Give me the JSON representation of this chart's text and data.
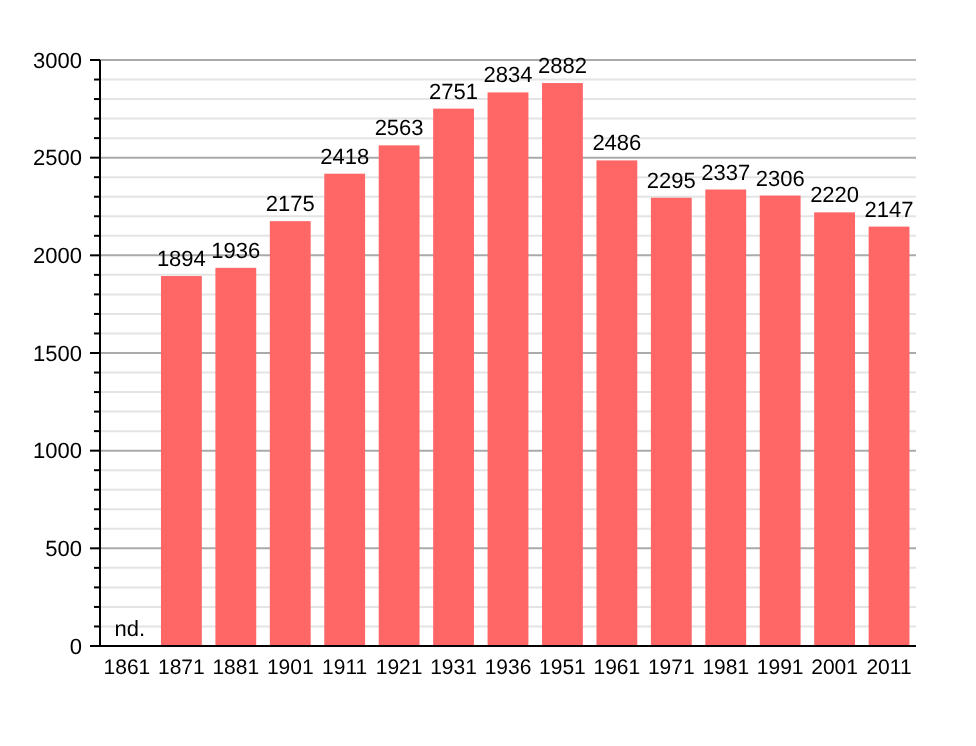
{
  "chart_data": {
    "type": "bar",
    "categories": [
      "1861",
      "1871",
      "1881",
      "1901",
      "1911",
      "1921",
      "1931",
      "1936",
      "1951",
      "1961",
      "1971",
      "1981",
      "1991",
      "2001",
      "2011"
    ],
    "values": [
      null,
      1894,
      1936,
      2175,
      2418,
      2563,
      2751,
      2834,
      2882,
      2486,
      2295,
      2337,
      2306,
      2220,
      2147
    ],
    "value_labels": [
      "nd.",
      "1894",
      "1936",
      "2175",
      "2418",
      "2563",
      "2751",
      "2834",
      "2882",
      "2486",
      "2295",
      "2337",
      "2306",
      "2220",
      "2147"
    ],
    "color": "#ff6666",
    "ylim": [
      0,
      3000
    ],
    "yticks": [
      0,
      {
        "value": 100,
        "label": null
      },
      {
        "value": 200,
        "label": null
      },
      {
        "value": 300,
        "label": null
      },
      {
        "value": 400,
        "label": null
      },
      500,
      {
        "value": 600,
        "label": null
      },
      {
        "value": 700,
        "label": null
      },
      {
        "value": 800,
        "label": null
      },
      {
        "value": 900,
        "label": null
      },
      1000,
      {
        "value": 1100,
        "label": null
      },
      {
        "value": 1200,
        "label": null
      },
      {
        "value": 1300,
        "label": null
      },
      {
        "value": 1400,
        "label": null
      },
      1500,
      {
        "value": 1600,
        "label": null
      },
      {
        "value": 1700,
        "label": null
      },
      {
        "value": 1800,
        "label": null
      },
      {
        "value": 1900,
        "label": null
      },
      2000,
      {
        "value": 2100,
        "label": null
      },
      {
        "value": 2200,
        "label": null
      },
      {
        "value": 2300,
        "label": null
      },
      {
        "value": 2400,
        "label": null
      },
      2500,
      {
        "value": 2600,
        "label": null
      },
      {
        "value": 2700,
        "label": null
      },
      {
        "value": 2800,
        "label": null
      },
      {
        "value": 2900,
        "label": null
      },
      3000
    ],
    "grid": "y"
  }
}
